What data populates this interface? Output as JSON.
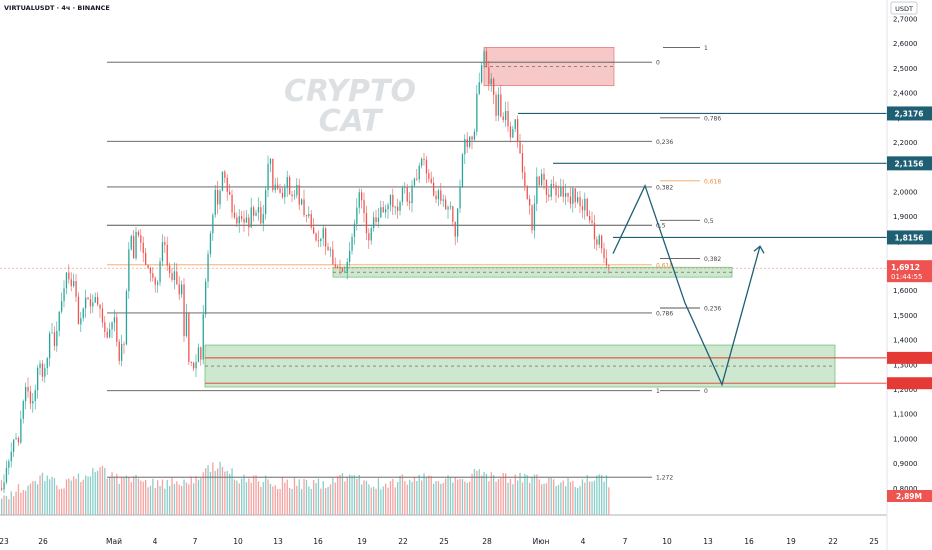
{
  "header": {
    "symbol": "VIRTUALUSDT · 4ч · BINANCE",
    "currency": "USDT"
  },
  "watermark": {
    "line1": "CRYPTO",
    "line2": "CAT"
  },
  "colors": {
    "up": "#26a69a",
    "down": "#ef5350",
    "fib": "#555555",
    "level": "#1e5f74",
    "current": "#ef5350",
    "zone_green": "#a5d6a7",
    "zone_red": "#ef9a9a"
  },
  "chart_data": {
    "type": "candlestick",
    "ylim": [
      0.73,
      2.76
    ],
    "y_ticks": [
      "2,7000",
      "2,6000",
      "2,5000",
      "2,4000",
      "2,3000",
      "2,2000",
      "2,1000",
      "2,0000",
      "1,9000",
      "1,8000",
      "1,7000",
      "1,6000",
      "1,5000",
      "1,4000",
      "1,3000",
      "1,2000",
      "1,1000",
      "1,0000",
      "0,9000",
      "0,8000"
    ],
    "x_labels": [
      "23",
      "26",
      "Май",
      "4",
      "7",
      "10",
      "13",
      "16",
      "19",
      "22",
      "25",
      "28",
      "Июн",
      "4",
      "7",
      "10",
      "13",
      "16",
      "19",
      "22",
      "25"
    ],
    "price_path": [
      [
        0,
        0.8
      ],
      [
        5,
        0.86
      ],
      [
        10,
        0.95
      ],
      [
        14,
        1.03
      ],
      [
        18,
        1.0
      ],
      [
        22,
        1.12
      ],
      [
        26,
        1.22
      ],
      [
        30,
        1.13
      ],
      [
        34,
        1.2
      ],
      [
        38,
        1.3
      ],
      [
        42,
        1.26
      ],
      [
        46,
        1.32
      ],
      [
        50,
        1.45
      ],
      [
        54,
        1.38
      ],
      [
        58,
        1.49
      ],
      [
        62,
        1.56
      ],
      [
        66,
        1.68
      ],
      [
        70,
        1.6
      ],
      [
        74,
        1.63
      ],
      [
        78,
        1.47
      ],
      [
        82,
        1.5
      ],
      [
        86,
        1.58
      ],
      [
        90,
        1.54
      ],
      [
        95,
        1.57
      ],
      [
        100,
        1.51
      ],
      [
        105,
        1.42
      ],
      [
        110,
        1.43
      ],
      [
        114,
        1.5
      ],
      [
        118,
        1.3
      ],
      [
        120,
        1.39
      ],
      [
        123,
        1.37
      ],
      [
        126,
        1.61
      ],
      [
        128,
        1.74
      ],
      [
        130,
        1.84
      ],
      [
        133,
        1.74
      ],
      [
        136,
        1.86
      ],
      [
        140,
        1.79
      ],
      [
        144,
        1.71
      ],
      [
        148,
        1.68
      ],
      [
        152,
        1.65
      ],
      [
        156,
        1.59
      ],
      [
        160,
        1.74
      ],
      [
        163,
        1.83
      ],
      [
        166,
        1.73
      ],
      [
        170,
        1.64
      ],
      [
        174,
        1.7
      ],
      [
        178,
        1.59
      ],
      [
        181,
        1.61
      ],
      [
        183,
        1.38
      ],
      [
        186,
        1.51
      ],
      [
        188,
        1.32
      ],
      [
        190,
        1.3
      ],
      [
        192,
        1.26
      ],
      [
        195,
        1.3
      ],
      [
        198,
        1.38
      ],
      [
        200,
        1.31
      ],
      [
        203,
        1.52
      ],
      [
        206,
        1.7
      ],
      [
        209,
        1.8
      ],
      [
        212,
        1.9
      ],
      [
        215,
        2.01
      ],
      [
        218,
        1.93
      ],
      [
        221,
        2.08
      ],
      [
        224,
        2.06
      ],
      [
        227,
        2.01
      ],
      [
        230,
        1.95
      ],
      [
        233,
        1.9
      ],
      [
        236,
        1.86
      ],
      [
        239,
        1.92
      ],
      [
        242,
        1.88
      ],
      [
        245,
        1.9
      ],
      [
        248,
        1.84
      ],
      [
        251,
        1.96
      ],
      [
        254,
        1.89
      ],
      [
        257,
        1.96
      ],
      [
        260,
        1.86
      ],
      [
        263,
        1.93
      ],
      [
        266,
        2.05
      ],
      [
        269,
        2.18
      ],
      [
        272,
        2.0
      ],
      [
        275,
        2.04
      ],
      [
        278,
        2.01
      ],
      [
        281,
        1.99
      ],
      [
        284,
        2.02
      ],
      [
        287,
        2.05
      ],
      [
        290,
        1.96
      ],
      [
        293,
        1.99
      ],
      [
        296,
        2.02
      ],
      [
        299,
        1.93
      ],
      [
        302,
        1.96
      ],
      [
        305,
        1.88
      ],
      [
        308,
        1.91
      ],
      [
        311,
        1.86
      ],
      [
        314,
        1.84
      ],
      [
        317,
        1.78
      ],
      [
        320,
        1.81
      ],
      [
        323,
        1.85
      ],
      [
        326,
        1.75
      ],
      [
        329,
        1.78
      ],
      [
        332,
        1.72
      ],
      [
        335,
        1.69
      ],
      [
        338,
        1.7
      ],
      [
        341,
        1.67
      ],
      [
        344,
        1.68
      ],
      [
        347,
        1.7
      ],
      [
        350,
        1.77
      ],
      [
        353,
        1.86
      ],
      [
        356,
        1.95
      ],
      [
        359,
        2.0
      ],
      [
        362,
        1.94
      ],
      [
        365,
        1.86
      ],
      [
        368,
        1.79
      ],
      [
        371,
        1.84
      ],
      [
        374,
        1.9
      ],
      [
        377,
        1.88
      ],
      [
        380,
        1.92
      ],
      [
        383,
        1.94
      ],
      [
        386,
        1.92
      ],
      [
        389,
        1.99
      ],
      [
        392,
        1.93
      ],
      [
        395,
        1.96
      ],
      [
        398,
        1.91
      ],
      [
        401,
        1.99
      ],
      [
        404,
        2.03
      ],
      [
        407,
        1.96
      ],
      [
        410,
        1.98
      ],
      [
        413,
        2.04
      ],
      [
        416,
        2.06
      ],
      [
        419,
        2.12
      ],
      [
        422,
        2.16
      ],
      [
        425,
        2.1
      ],
      [
        428,
        2.07
      ],
      [
        431,
        2.02
      ],
      [
        434,
        1.96
      ],
      [
        437,
        2.0
      ],
      [
        440,
        1.95
      ],
      [
        443,
        1.98
      ],
      [
        446,
        1.93
      ],
      [
        449,
        1.95
      ],
      [
        452,
        1.89
      ],
      [
        455,
        1.83
      ],
      [
        458,
        1.97
      ],
      [
        461,
        2.12
      ],
      [
        464,
        2.21
      ],
      [
        467,
        2.19
      ],
      [
        470,
        2.26
      ],
      [
        473,
        2.2
      ],
      [
        476,
        2.38
      ],
      [
        479,
        2.45
      ],
      [
        482,
        2.54
      ],
      [
        484,
        2.57
      ],
      [
        486,
        2.48
      ],
      [
        488,
        2.44
      ],
      [
        490,
        2.46
      ],
      [
        492,
        2.4
      ],
      [
        494,
        2.37
      ],
      [
        496,
        2.3
      ],
      [
        498,
        2.39
      ],
      [
        500,
        2.33
      ],
      [
        502,
        2.28
      ],
      [
        504,
        2.34
      ],
      [
        506,
        2.3
      ],
      [
        508,
        2.25
      ],
      [
        511,
        2.2
      ],
      [
        514,
        2.31
      ],
      [
        517,
        2.19
      ],
      [
        520,
        2.14
      ],
      [
        523,
        2.06
      ],
      [
        526,
        2.0
      ],
      [
        529,
        1.94
      ],
      [
        531,
        1.82
      ],
      [
        533,
        1.92
      ],
      [
        536,
        2.06
      ],
      [
        539,
        2.04
      ],
      [
        542,
        2.1
      ],
      [
        545,
        2.0
      ],
      [
        548,
        1.96
      ],
      [
        551,
        2.06
      ],
      [
        554,
        2.0
      ],
      [
        557,
        1.97
      ],
      [
        560,
        2.04
      ],
      [
        563,
        1.96
      ],
      [
        566,
        2.0
      ],
      [
        569,
        1.95
      ],
      [
        572,
        2.01
      ],
      [
        575,
        1.93
      ],
      [
        578,
        1.99
      ],
      [
        581,
        1.92
      ],
      [
        584,
        1.97
      ],
      [
        587,
        1.9
      ],
      [
        590,
        1.87
      ],
      [
        593,
        1.84
      ],
      [
        596,
        1.78
      ],
      [
        599,
        1.81
      ],
      [
        602,
        1.73
      ],
      [
        604,
        1.74
      ],
      [
        607,
        1.69
      ],
      [
        609,
        1.69
      ]
    ],
    "volume_path": [
      [
        0,
        0.76
      ],
      [
        20,
        0.8
      ],
      [
        40,
        0.84
      ],
      [
        60,
        0.82
      ],
      [
        80,
        0.84
      ],
      [
        100,
        0.87
      ],
      [
        120,
        0.84
      ],
      [
        140,
        0.83
      ],
      [
        160,
        0.82
      ],
      [
        180,
        0.83
      ],
      [
        200,
        0.85
      ],
      [
        220,
        0.9
      ],
      [
        240,
        0.84
      ],
      [
        260,
        0.83
      ],
      [
        280,
        0.82
      ],
      [
        300,
        0.82
      ],
      [
        320,
        0.82
      ],
      [
        340,
        0.84
      ],
      [
        360,
        0.83
      ],
      [
        380,
        0.82
      ],
      [
        400,
        0.83
      ],
      [
        420,
        0.84
      ],
      [
        440,
        0.83
      ],
      [
        460,
        0.84
      ],
      [
        480,
        0.86
      ],
      [
        500,
        0.84
      ],
      [
        520,
        0.84
      ],
      [
        540,
        0.84
      ],
      [
        560,
        0.82
      ],
      [
        580,
        0.82
      ],
      [
        600,
        0.85
      ],
      [
        609,
        0.82
      ]
    ],
    "fib_levels": [
      {
        "label": "1",
        "price": 2.585,
        "x1": 663,
        "x2": 700
      },
      {
        "label": "0",
        "price": 2.525,
        "x1": 107,
        "x2": 652
      },
      {
        "label": "0,786",
        "price": 2.3,
        "x1": 660,
        "x2": 700
      },
      {
        "label": "0,236",
        "price": 2.205,
        "x1": 107,
        "x2": 652
      },
      {
        "label": "0,618",
        "price": 2.045,
        "x1": 660,
        "x2": 700
      },
      {
        "label": "0,382",
        "price": 2.02,
        "x1": 107,
        "x2": 652
      },
      {
        "label": "0,5",
        "price": 1.885,
        "x1": 660,
        "x2": 700
      },
      {
        "label": "0,5",
        "price": 1.865,
        "x1": 107,
        "x2": 652
      },
      {
        "label": "0,382",
        "price": 1.73,
        "x1": 660,
        "x2": 700
      },
      {
        "label": "0,618",
        "price": 1.705,
        "x1": 107,
        "x2": 652
      },
      {
        "label": "0,236",
        "price": 1.53,
        "x1": 660,
        "x2": 700
      },
      {
        "label": "0,786",
        "price": 1.51,
        "x1": 107,
        "x2": 652
      },
      {
        "label": "1",
        "price": 1.195,
        "x1": 107,
        "x2": 652
      },
      {
        "label": "0",
        "price": 1.195,
        "x1": 660,
        "x2": 700
      },
      {
        "label": "1,272",
        "price": 0.845,
        "x1": 107,
        "x2": 652
      }
    ],
    "key_levels": [
      {
        "label": "2,3176",
        "price": 2.3176,
        "x1": 518
      },
      {
        "label": "2,1156",
        "price": 2.1156,
        "x1": 553
      },
      {
        "label": "1,8156",
        "price": 1.8156,
        "x1": 613
      }
    ],
    "red_levels": [
      1.328,
      1.2254
    ],
    "current_price": {
      "label": "1,6912",
      "countdown": "01:44:55",
      "price": 1.6912
    },
    "volume_label": "2,89M",
    "zones": [
      {
        "type": "green",
        "p1": 1.38,
        "p2": 1.21,
        "x1": 205,
        "x2": 835
      },
      {
        "type": "green",
        "p1": 1.695,
        "p2": 1.655,
        "x1": 333,
        "x2": 732
      },
      {
        "type": "red",
        "p1": 2.585,
        "p2": 2.43,
        "x1": 484,
        "x2": 614
      }
    ],
    "projection": [
      [
        613,
        1.75
      ],
      [
        645,
        2.025
      ],
      [
        685,
        1.55
      ],
      [
        722,
        1.22
      ],
      [
        760,
        1.78
      ]
    ]
  }
}
